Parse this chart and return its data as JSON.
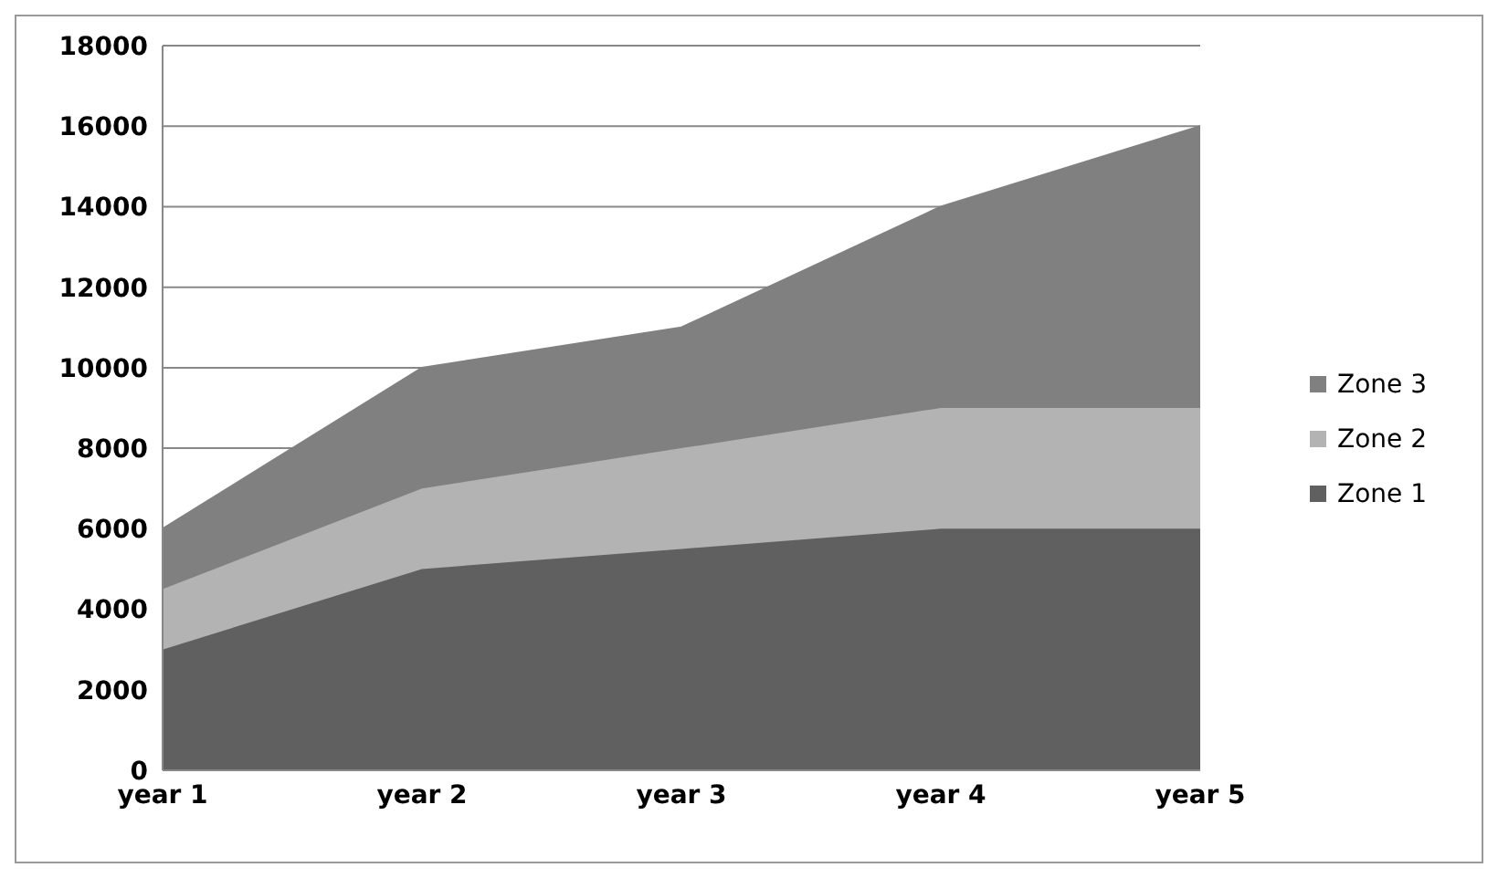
{
  "chart_data": {
    "type": "area",
    "stacked": true,
    "categories": [
      "year 1",
      "year 2",
      "year 3",
      "year 4",
      "year 5"
    ],
    "series": [
      {
        "name": "Zone 1",
        "color": "#606060",
        "values": [
          3000,
          5000,
          5500,
          6000,
          6000
        ]
      },
      {
        "name": "Zone 2",
        "color": "#b3b3b3",
        "values": [
          1500,
          2000,
          2500,
          3000,
          3000
        ]
      },
      {
        "name": "Zone 3",
        "color": "#808080",
        "values": [
          1500,
          3000,
          3000,
          5000,
          7000
        ]
      }
    ],
    "ylim": [
      0,
      18000
    ],
    "yticks": [
      0,
      2000,
      4000,
      6000,
      8000,
      10000,
      12000,
      14000,
      16000,
      18000
    ],
    "grid": "y",
    "legend": "right"
  }
}
